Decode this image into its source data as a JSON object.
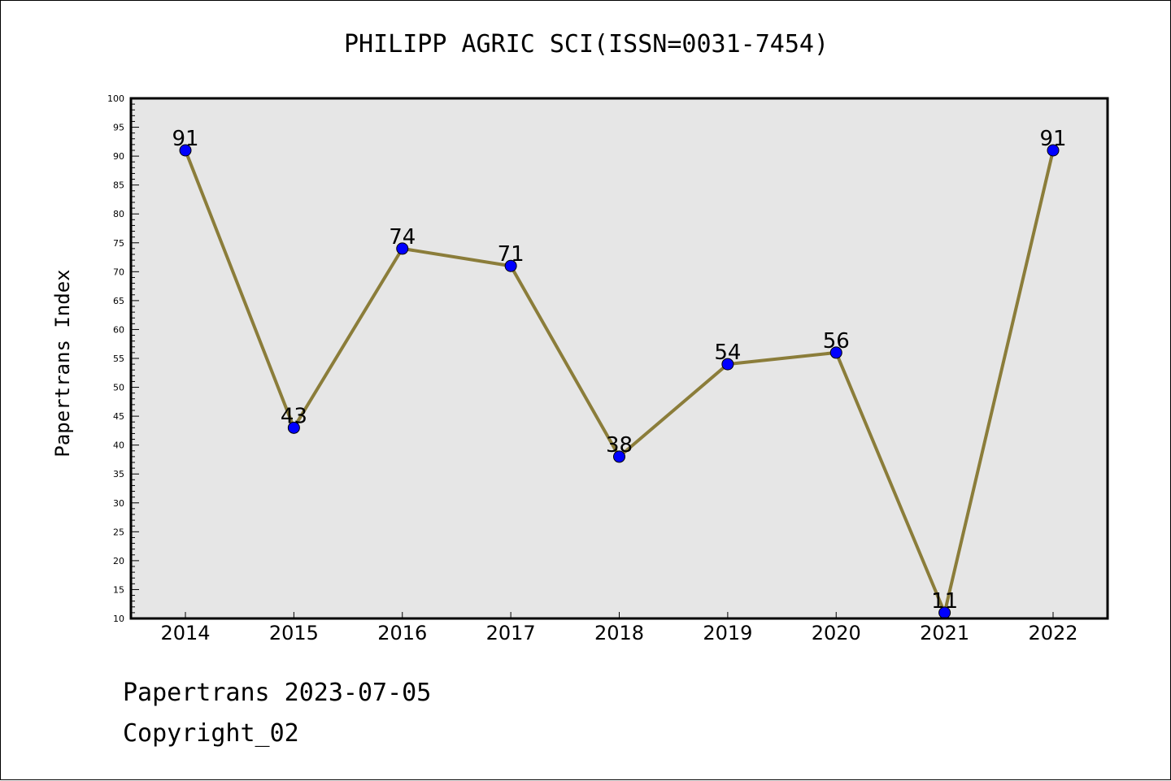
{
  "chart_data": {
    "type": "line",
    "title": "PHILIPP AGRIC SCI(ISSN=0031-7454)",
    "xlabel": "",
    "ylabel": "Papertrans Index",
    "categories": [
      "2014",
      "2015",
      "2016",
      "2017",
      "2018",
      "2019",
      "2020",
      "2021",
      "2022"
    ],
    "series": [
      {
        "values": [
          91,
          43,
          74,
          71,
          38,
          54,
          56,
          11,
          91
        ]
      }
    ],
    "ylim": [
      10,
      100
    ],
    "yticks": [
      10,
      15,
      20,
      25,
      30,
      35,
      40,
      45,
      50,
      55,
      60,
      65,
      70,
      75,
      80,
      85,
      90,
      95,
      100
    ],
    "grid": false,
    "legend": "none",
    "data_labels": true,
    "colors": {
      "line": "#8B7D3A",
      "marker": "#0000FF",
      "plot_background": "#E6E6E6"
    }
  },
  "footer": {
    "date_line": "Papertrans 2023-07-05",
    "copyright": "Copyright_02"
  }
}
